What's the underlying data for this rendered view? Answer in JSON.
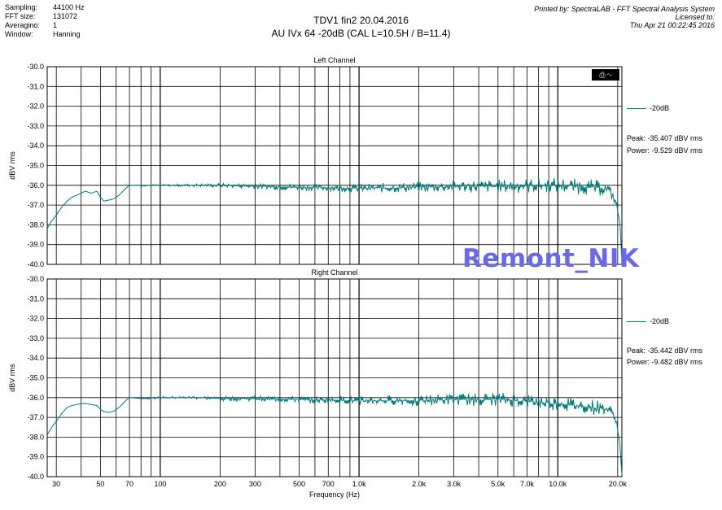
{
  "header": {
    "rows": [
      {
        "key": "Sampling:",
        "value": "44100 Hz"
      },
      {
        "key": "FFT size:",
        "value": "131072"
      },
      {
        "key": "Averagino:",
        "value": "1"
      },
      {
        "key": "Window:",
        "value": "Hanning"
      }
    ],
    "title_line1": "TDV1 fin2 20.04.2016",
    "title_line2": "AU IVx 64  -20dB  (CAL L=10.5H / B=11.4)",
    "printed_by": "Printed by: SpectraLAB - FFT Spectral Analysis System",
    "licensed_to": "Licensed to:",
    "timestamp": "Thu Apr 21 00:22:45 2016"
  },
  "watermark": "Remont_NIK",
  "control_icon": "print-wave-icon",
  "series_color": "#007a7a",
  "chart_data": [
    {
      "type": "line",
      "title": "Left Channel",
      "ylabel": "dBV rms",
      "xlabel": "",
      "xscale": "log",
      "xlim": [
        27,
        21000
      ],
      "ylim": [
        -40.0,
        -30.0
      ],
      "ytick_labels": [
        "-30.0",
        "-31.0",
        "-32.0",
        "-33.0",
        "-34.0",
        "-35.0",
        "-36.0",
        "-37.0",
        "-38.0",
        "-39.0",
        "-40.0"
      ],
      "grid": true,
      "legend": "right",
      "series": [
        {
          "name": "-20dB",
          "x": [
            27,
            28,
            30,
            32,
            34,
            36,
            38,
            40,
            42,
            45,
            48,
            50,
            52,
            55,
            58,
            60,
            62,
            65,
            68,
            70,
            80,
            100,
            150,
            200,
            300,
            500,
            1000,
            2000,
            3000,
            5000,
            10000,
            15000,
            18000,
            19500,
            20500,
            21000
          ],
          "y": [
            -38.2,
            -37.9,
            -37.5,
            -37.1,
            -36.8,
            -36.6,
            -36.5,
            -36.4,
            -36.3,
            -36.4,
            -36.3,
            -36.6,
            -36.8,
            -36.75,
            -36.7,
            -36.6,
            -36.5,
            -36.3,
            -36.1,
            -36.0,
            -36.0,
            -36.0,
            -36.0,
            -36.0,
            -36.05,
            -36.1,
            -36.15,
            -36.1,
            -36.05,
            -36.05,
            -36.0,
            -36.1,
            -36.2,
            -36.8,
            -37.8,
            -39.8
          ]
        }
      ],
      "annotations": [
        "Peak: -35.407 dBV rms",
        "Power: -9.529 dBV rms"
      ]
    },
    {
      "type": "line",
      "title": "Right Channel",
      "ylabel": "dBV rms",
      "xlabel": "Frequency (Hz)",
      "xscale": "log",
      "xlim": [
        27,
        21000
      ],
      "ylim": [
        -40.0,
        -30.0
      ],
      "ytick_labels": [
        "-30.0",
        "-31.0",
        "-32.0",
        "-33.0",
        "-34.0",
        "-35.0",
        "-36.0",
        "-37.0",
        "-38.0",
        "-39.0",
        "-40.0"
      ],
      "xtick_labels": [
        {
          "v": 30,
          "label": "30"
        },
        {
          "v": 50,
          "label": "50"
        },
        {
          "v": 70,
          "label": "70"
        },
        {
          "v": 100,
          "label": "100"
        },
        {
          "v": 200,
          "label": "200"
        },
        {
          "v": 300,
          "label": "300"
        },
        {
          "v": 500,
          "label": "500"
        },
        {
          "v": 700,
          "label": "700"
        },
        {
          "v": 1000,
          "label": "1.0k"
        },
        {
          "v": 2000,
          "label": "2.0k"
        },
        {
          "v": 3000,
          "label": "3.0k"
        },
        {
          "v": 5000,
          "label": "5.0k"
        },
        {
          "v": 7000,
          "label": "7.0k"
        },
        {
          "v": 10000,
          "label": "10.0k"
        },
        {
          "v": 20000,
          "label": "20.0k"
        }
      ],
      "grid": true,
      "legend": "right",
      "series": [
        {
          "name": "-20dB",
          "x": [
            27,
            28,
            30,
            32,
            34,
            36,
            38,
            40,
            42,
            45,
            48,
            50,
            52,
            55,
            58,
            60,
            62,
            65,
            68,
            70,
            80,
            100,
            150,
            200,
            300,
            500,
            1000,
            2000,
            3000,
            5000,
            10000,
            15000,
            18000,
            19500,
            20500,
            21000
          ],
          "y": [
            -37.9,
            -37.6,
            -37.2,
            -36.8,
            -36.5,
            -36.4,
            -36.35,
            -36.3,
            -36.3,
            -36.35,
            -36.4,
            -36.6,
            -36.7,
            -36.75,
            -36.7,
            -36.6,
            -36.5,
            -36.3,
            -36.1,
            -36.0,
            -36.05,
            -36.0,
            -36.0,
            -36.05,
            -36.05,
            -36.1,
            -36.15,
            -36.15,
            -36.1,
            -36.1,
            -36.3,
            -36.5,
            -36.6,
            -37.0,
            -38.3,
            -39.9
          ]
        }
      ],
      "annotations": [
        "Peak: -35.442 dBV rms",
        "Power: -9.482 dBV rms"
      ]
    }
  ]
}
